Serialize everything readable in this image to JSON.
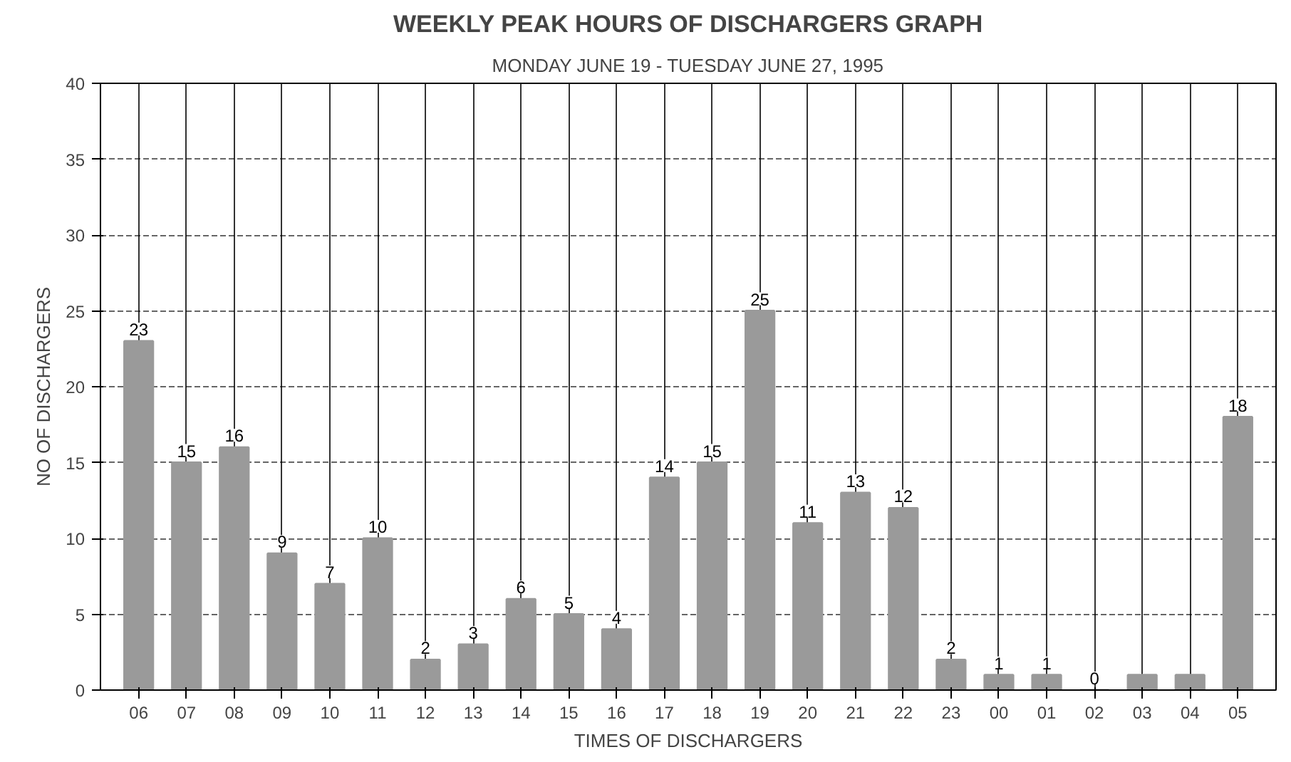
{
  "chart_data": {
    "type": "bar",
    "title": "WEEKLY PEAK HOURS OF DISCHARGERS GRAPH",
    "subtitle": "MONDAY JUNE 19 - TUESDAY JUNE 27, 1995",
    "xlabel": "TIMES OF DISCHARGERS",
    "ylabel": "NO OF DISCHARGERS",
    "categories": [
      "06",
      "07",
      "08",
      "09",
      "10",
      "11",
      "12",
      "13",
      "14",
      "15",
      "16",
      "17",
      "18",
      "19",
      "20",
      "21",
      "22",
      "23",
      "00",
      "01",
      "02",
      "03",
      "04",
      "05"
    ],
    "values": [
      23,
      15,
      16,
      9,
      7,
      10,
      2,
      3,
      6,
      5,
      4,
      14,
      15,
      25,
      11,
      13,
      12,
      2,
      1,
      1,
      0,
      1,
      1,
      18
    ],
    "value_labels": [
      "23",
      "15",
      "16",
      "9",
      "7",
      "10",
      "2",
      "3",
      "6",
      "5",
      "4",
      "14",
      "15",
      "25",
      "11",
      "13",
      "12",
      "2",
      "1",
      "1",
      "0",
      null,
      null,
      "18"
    ],
    "color": "#9a9a9a",
    "ylim": [
      0,
      40
    ],
    "yticks": [
      0,
      5,
      10,
      15,
      20,
      25,
      30,
      35,
      40
    ],
    "grid": true
  }
}
